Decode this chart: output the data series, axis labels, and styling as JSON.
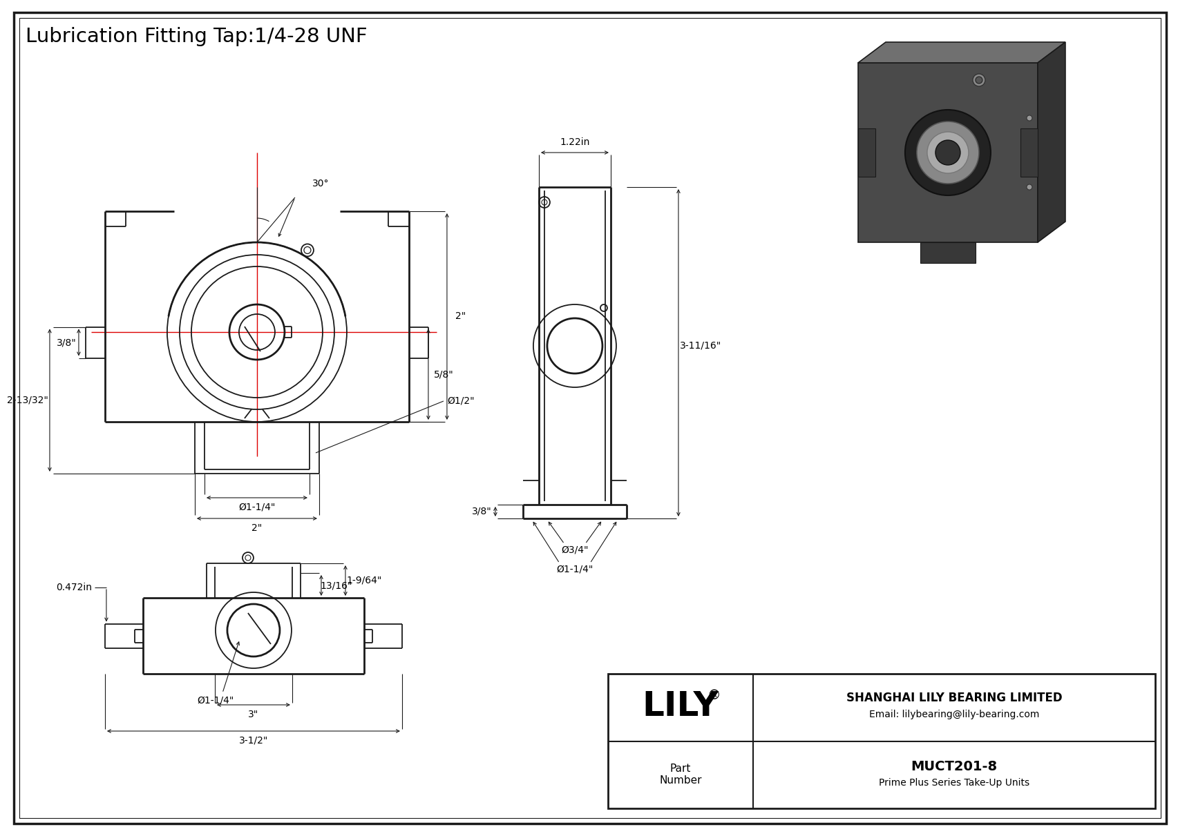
{
  "title": "Lubrication Fitting Tap:1/4-28 UNF",
  "bg_color": "#ffffff",
  "line_color": "#1a1a1a",
  "red_color": "#dd0000",
  "title_fontsize": 20,
  "company_full": "SHANGHAI LILY BEARING LIMITED",
  "company_email": "Email: lilybearing@lily-bearing.com",
  "part_number": "MUCT201-8",
  "part_series": "Prime Plus Series Take-Up Units",
  "dims": {
    "angle_label": "30°",
    "fv_2in": "2\"",
    "fv_2_13_32": "2-13/32\"",
    "fv_3_8": "3/8\"",
    "fv_5_8": "5/8\"",
    "fv_dia_half": "Ø1/2\"",
    "fv_dia_1_1_4": "Ø1-1/4\"",
    "fv_2in_b": "2\"",
    "fv_0472": "0.472in",
    "sv_1_22in": "1.22in",
    "sv_3_11_16": "3-11/16\"",
    "sv_3_8": "3/8\"",
    "sv_dia_3_4": "Ø3/4\"",
    "sv_dia_1_1_4": "Ø1-1/4\"",
    "bv_dia_1_1_4": "Ø1-1/4\"",
    "bv_13_16": "13/16\"",
    "bv_1_9_64": "1-9/64\"",
    "bv_3in": "3\"",
    "bv_3_1_2": "3-1/2\""
  }
}
